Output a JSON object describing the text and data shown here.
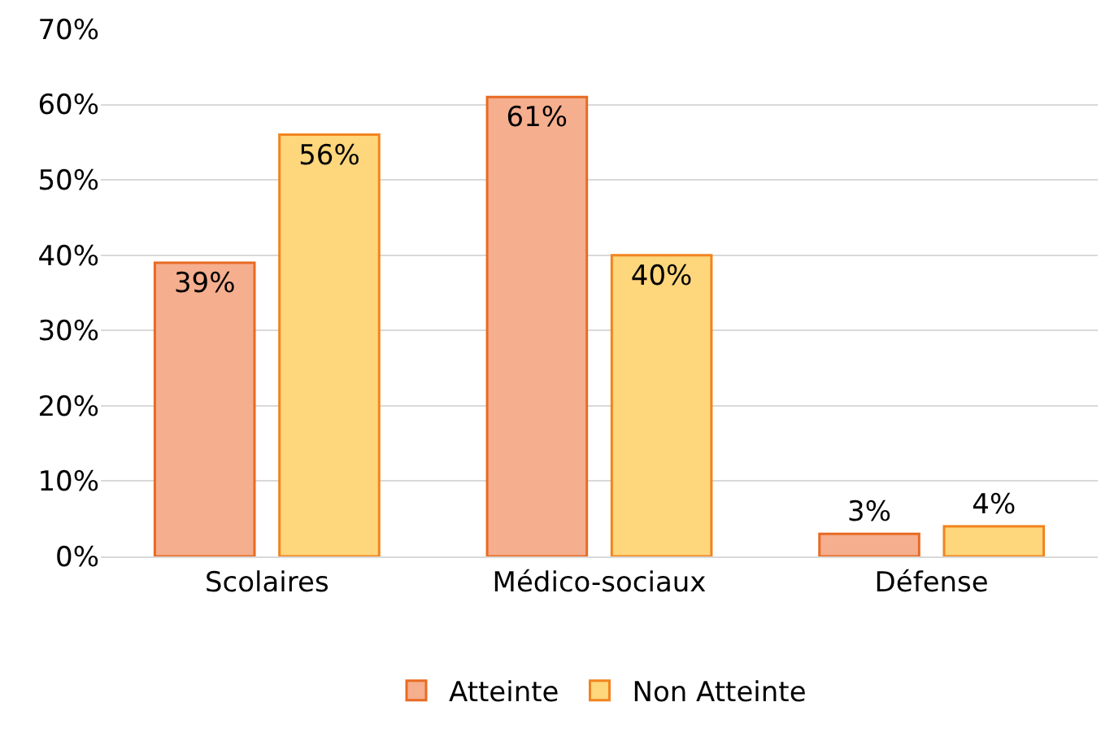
{
  "chart_data": {
    "type": "bar",
    "categories": [
      "Scolaires",
      "Médico-sociaux",
      "Défense"
    ],
    "series": [
      {
        "name": "Atteinte",
        "color": "#f5ae8e",
        "values": [
          39,
          61,
          3
        ],
        "value_labels": [
          "39%",
          "61%",
          "3%"
        ]
      },
      {
        "name": "Non Atteinte",
        "color": "#fed67c",
        "values": [
          56,
          40,
          4
        ],
        "value_labels": [
          "56%",
          "40%",
          "4%"
        ]
      }
    ],
    "ylim": [
      0,
      70
    ],
    "yticks": [
      {
        "value": 0,
        "label": "0%"
      },
      {
        "value": 10,
        "label": "10%"
      },
      {
        "value": 20,
        "label": "20%"
      },
      {
        "value": 30,
        "label": "30%"
      },
      {
        "value": 40,
        "label": "40%"
      },
      {
        "value": 50,
        "label": "50%"
      },
      {
        "value": 60,
        "label": "60%"
      },
      {
        "value": 70,
        "label": "70%"
      }
    ],
    "grid": "y",
    "legend": "bottom"
  }
}
